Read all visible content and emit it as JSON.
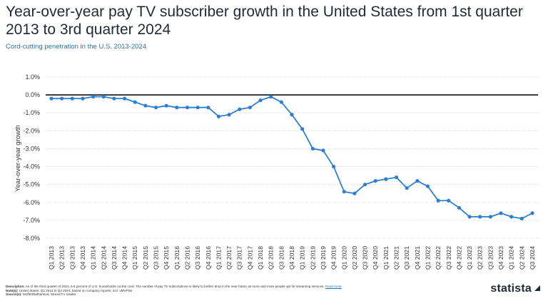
{
  "title": "Year-over-year pay TV subscriber growth in the United States from 1st quarter 2013 to 3rd quarter 2024",
  "subtitle": "Cord-cutting penetration in the U.S. 2013-2024",
  "footer": {
    "description_label": "Description:",
    "description": "As of the third quarter of 2024, 6.6 percent of U.S. households cut the cord. The number of pay TV subscriptions is likely to further drop in the near future as more and more people opt for streaming services.",
    "read_more": "Read more",
    "notes_label": "Note(s):",
    "notes": "United States; Q1 2013 to Q3 2024; based on company reports; incl. vMVPDs",
    "sources_label": "Source(s):",
    "sources": "MoffettNathanson; StreamTV Insider"
  },
  "brand": "statista",
  "colors": {
    "line": "#2f7fd1",
    "zero_line": "#111111",
    "grid": "#d9d9d9"
  },
  "chart_data": {
    "type": "line",
    "title": "Year-over-year pay TV subscriber growth in the United States from 1st quarter 2013 to 3rd quarter 2024",
    "xlabel": "",
    "ylabel": "Year-over-year growth",
    "ylim": [
      -8,
      1
    ],
    "yticks": [
      1,
      0,
      -1,
      -2,
      -3,
      -4,
      -5,
      -6,
      -7,
      -8
    ],
    "ytick_labels": [
      "1.0%",
      "0.0%",
      "-1.0%",
      "-2.0%",
      "-3.0%",
      "-4.0%",
      "-5.0%",
      "-6.0%",
      "-7.0%",
      "-8.0%"
    ],
    "grid": true,
    "categories": [
      "Q1 2013",
      "Q2 2013",
      "Q3 2013",
      "Q4 2013",
      "Q1 2014",
      "Q2 2014",
      "Q3 2014",
      "Q4 2014",
      "Q1 2015",
      "Q2 2015",
      "Q3 2015",
      "Q4 2015",
      "Q1 2016",
      "Q2 2016",
      "Q3 2016",
      "Q4 2016",
      "Q1 2017",
      "Q2 2017",
      "Q3 2017",
      "Q4 2017",
      "Q1 2018",
      "Q2 2018",
      "Q3 2018",
      "Q4 2018",
      "Q1 2019",
      "Q2 2019",
      "Q3 2019",
      "Q4 2019",
      "Q1 2020",
      "Q2 2020",
      "Q3 2020",
      "Q4 2020",
      "Q1 2021",
      "Q2 2021",
      "Q3 2021",
      "Q4 2021",
      "Q1 2022",
      "Q2 2022",
      "Q3 2022",
      "Q4 2022",
      "Q1 2023",
      "Q2 2023",
      "Q3 2023",
      "Q4 2023",
      "Q1 2024",
      "Q2 2024",
      "Q3 2024"
    ],
    "series": [
      {
        "name": "Year-over-year growth",
        "values": [
          -0.2,
          -0.2,
          -0.2,
          -0.2,
          -0.1,
          -0.1,
          -0.2,
          -0.2,
          -0.4,
          -0.6,
          -0.7,
          -0.6,
          -0.7,
          -0.7,
          -0.7,
          -0.7,
          -1.2,
          -1.1,
          -0.8,
          -0.7,
          -0.3,
          -0.1,
          -0.4,
          -1.1,
          -1.9,
          -3.0,
          -3.1,
          -4.0,
          -5.4,
          -5.5,
          -5.0,
          -4.8,
          -4.7,
          -4.6,
          -5.2,
          -4.8,
          -5.1,
          -5.9,
          -5.9,
          -6.3,
          -6.8,
          -6.8,
          -6.8,
          -6.6,
          -6.8,
          -6.9,
          -6.6
        ]
      }
    ]
  }
}
